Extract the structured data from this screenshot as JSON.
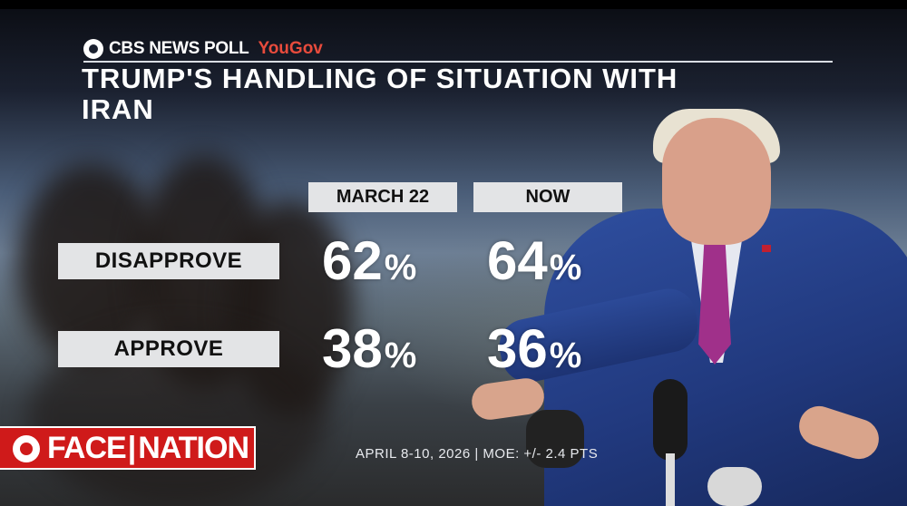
{
  "brand": {
    "network": "CBS NEWS POLL",
    "partner": "YouGov"
  },
  "title": "TRUMP'S HANDLING OF SITUATION WITH IRAN",
  "columns": [
    "MARCH 22",
    "NOW"
  ],
  "rows": [
    {
      "label": "DISAPPROVE",
      "values": [
        "62",
        "64"
      ]
    },
    {
      "label": "APPROVE",
      "values": [
        "38",
        "36"
      ]
    }
  ],
  "percent_sign": "%",
  "source_note": "APRIL 8-10, 2026 | MOE: +/- 2.4 PTS",
  "show_logo": {
    "left": "FACE",
    "right": "NATION"
  },
  "colors": {
    "label_bg": "#e3e4e6",
    "brand_red": "#cf1a1a",
    "yougov_red": "#e84b3c"
  }
}
